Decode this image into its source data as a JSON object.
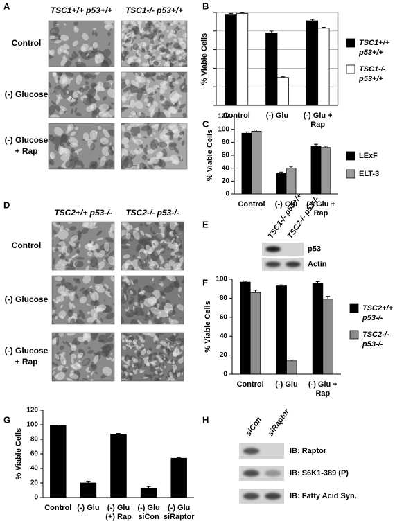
{
  "panel_letters": [
    "A",
    "B",
    "C",
    "D",
    "E",
    "F",
    "G",
    "H"
  ],
  "panel_a": {
    "column_headers": [
      "TSC1+/+ p53+/+",
      "TSC1-/- p53+/+"
    ],
    "row_labels": [
      [
        "Control"
      ],
      [
        "(-) Glucose"
      ],
      [
        "(-) Glucose",
        "+ Rap"
      ]
    ]
  },
  "panel_d": {
    "column_headers": [
      "TSC2+/+ p53-/-",
      "TSC2-/- p53-/-"
    ],
    "row_labels": [
      [
        "Control"
      ],
      [
        "(-) Glucose"
      ],
      [
        "(-) Glucose",
        "+ Rap"
      ]
    ]
  },
  "panel_e": {
    "lane_labels": [
      "TSC1-/- p53+/+",
      "TSC2-/- p53-/-"
    ],
    "blot_labels": [
      "p53",
      "Actin"
    ]
  },
  "panel_h": {
    "lane_labels": [
      "siCon",
      "siRaptor"
    ],
    "blot_labels": [
      "IB: Raptor",
      "IB: S6K1-389 (P)",
      "IB: Fatty Acid Syn."
    ]
  },
  "chart_data": [
    {
      "type": "bar",
      "y_label": "% Viable Cells",
      "categories": [
        [
          "Control"
        ],
        [
          "(-) Glu"
        ],
        [
          "(-) Glu +",
          "Rap"
        ]
      ],
      "series": [
        {
          "name": [
            "TSC1+/+",
            "p53+/+"
          ],
          "color": "#000000",
          "values": [
            98,
            78,
            91
          ],
          "errors": [
            1,
            2,
            1.5
          ]
        },
        {
          "name": [
            "TSC1-/-",
            "p53+/+"
          ],
          "color": "#ffffff",
          "values": [
            99,
            30,
            83
          ],
          "errors": [
            0.5,
            0.8,
            1
          ]
        }
      ],
      "ylim": [
        0,
        100
      ],
      "yticks": [
        0,
        20,
        40,
        60,
        80,
        100
      ],
      "tick_labels": false,
      "grid": true
    },
    {
      "type": "bar",
      "y_label": "% Viable Cells",
      "categories": [
        [
          "Control"
        ],
        [
          "(-) Glu"
        ],
        [
          "(-) Glu +",
          "Rap"
        ]
      ],
      "series": [
        {
          "name": "LExF",
          "color": "#000000",
          "values": [
            94,
            32,
            74
          ],
          "errors": [
            2,
            2,
            3
          ]
        },
        {
          "name": "ELT-3",
          "color": "#999999",
          "values": [
            97,
            40,
            72
          ],
          "errors": [
            2,
            3,
            2
          ]
        }
      ],
      "ylim": [
        0,
        120
      ],
      "yticks": [
        0,
        20,
        40,
        60,
        80,
        100,
        120
      ],
      "grid": false
    },
    {
      "type": "bar",
      "y_label": "% Viable Cells",
      "categories": [
        [
          "Control"
        ],
        [
          "(-) Glu"
        ],
        [
          "(-) Glu +",
          "Rap"
        ]
      ],
      "series": [
        {
          "name": [
            "TSC2+/+",
            "p53-/-"
          ],
          "color": "#000000",
          "values": [
            97,
            93,
            96
          ],
          "errors": [
            1,
            1,
            1.5
          ]
        },
        {
          "name": [
            "TSC2-/-",
            "p53-/-"
          ],
          "color": "#8c8c8c",
          "values": [
            86,
            14,
            79
          ],
          "errors": [
            2.5,
            1,
            3
          ]
        }
      ],
      "ylim": [
        0,
        100
      ],
      "yticks": [
        0,
        20,
        40,
        60,
        80,
        100
      ],
      "grid": false
    },
    {
      "type": "bar",
      "y_label": "% Viable Cells",
      "categories": [
        [
          "Control"
        ],
        [
          "(-) Glu"
        ],
        [
          "(-) Glu",
          "(+) Rap"
        ],
        [
          "(-) Glu",
          "siCon"
        ],
        [
          "(-) Glu",
          "siRaptor"
        ]
      ],
      "series": [
        {
          "color": "#000000",
          "values": [
            99,
            20,
            87,
            13,
            54
          ],
          "errors": [
            0.5,
            2.5,
            1,
            2,
            1
          ]
        }
      ],
      "ylim": [
        0,
        120
      ],
      "yticks": [
        0,
        20,
        40,
        60,
        80,
        100,
        120
      ],
      "grid": false
    }
  ]
}
